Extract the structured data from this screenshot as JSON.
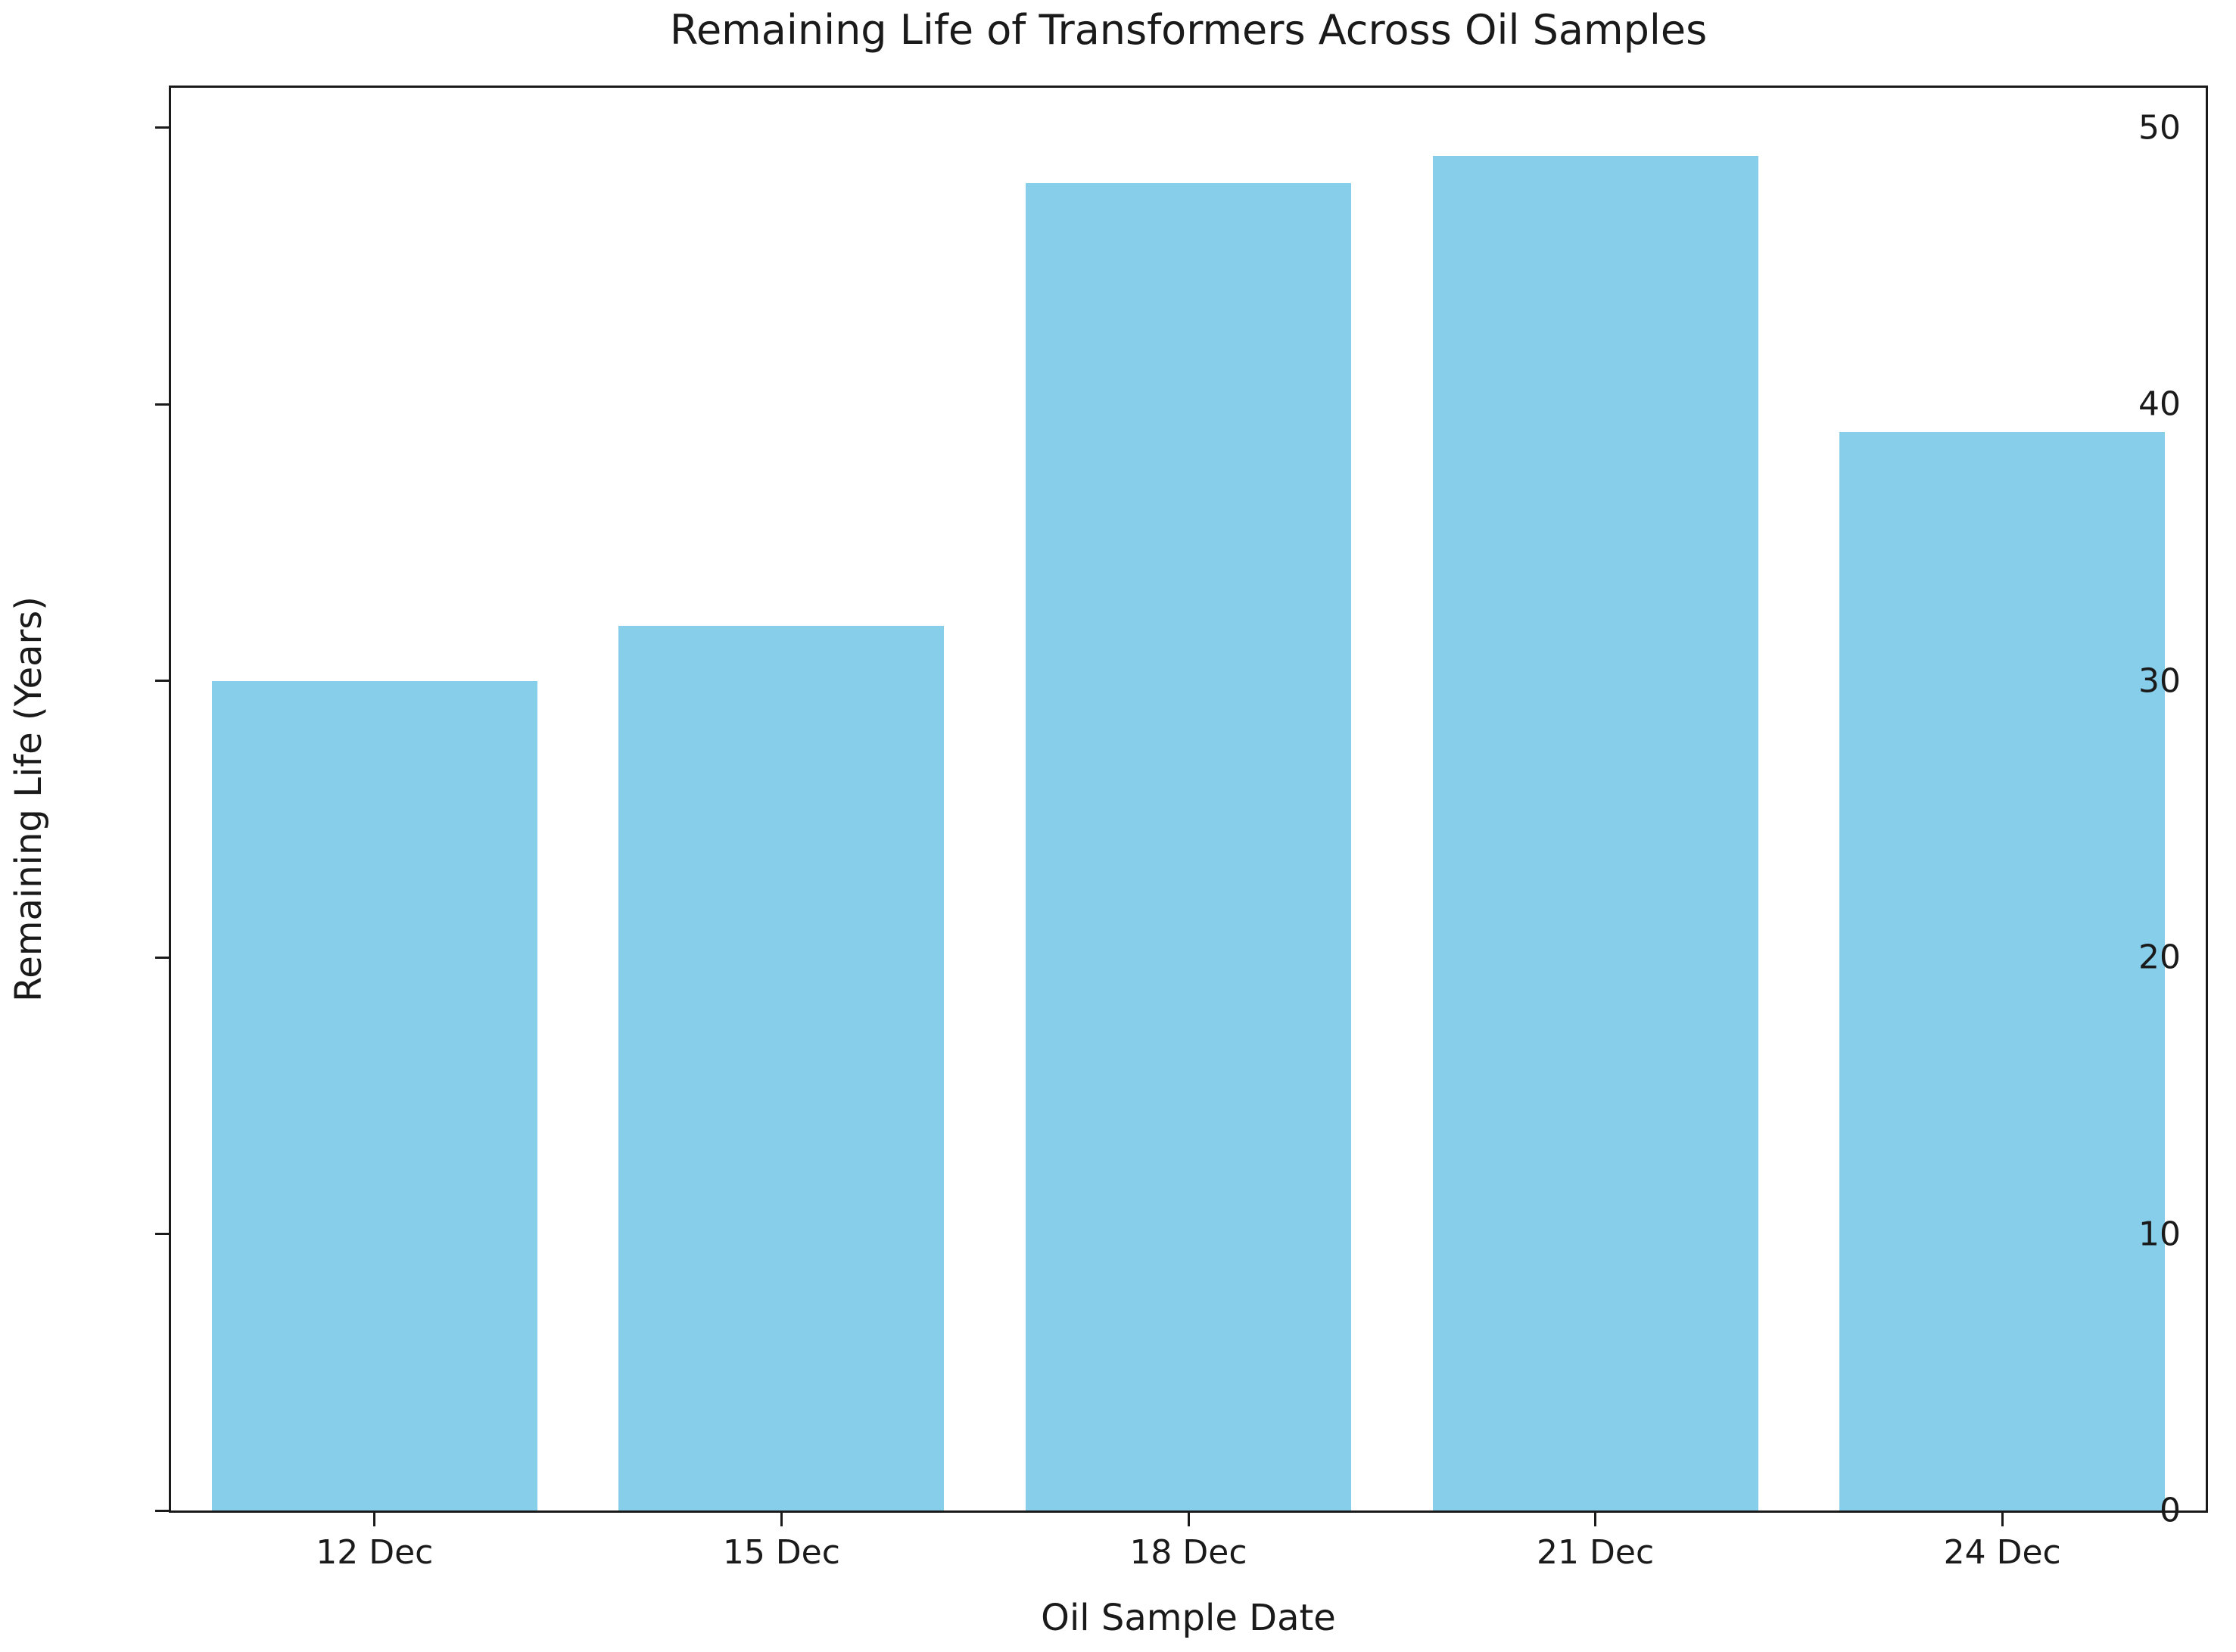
{
  "chart_data": {
    "type": "bar",
    "title": "Remaining Life of Transformers Across Oil Samples",
    "xlabel": "Oil Sample Date",
    "ylabel": "Remaining Life (Years)",
    "categories": [
      "12 Dec",
      "15 Dec",
      "18 Dec",
      "21 Dec",
      "24 Dec"
    ],
    "values": [
      30,
      32,
      48,
      49,
      39
    ],
    "ylim": [
      0,
      51.45
    ],
    "yticks": [
      0,
      10,
      20,
      30,
      40,
      50
    ],
    "bar_color": "#87CEEB",
    "bar_width_fraction": 0.8,
    "grid": false,
    "legend_position": "none",
    "background_color": "#ffffff",
    "text_color": "#1a1a1a"
  }
}
